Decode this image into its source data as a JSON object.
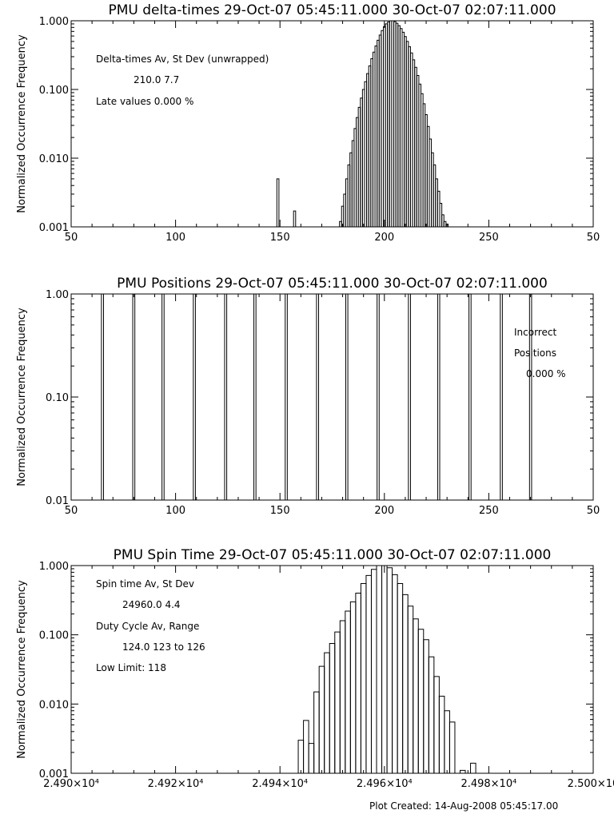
{
  "chart_data": [
    {
      "type": "histogram",
      "title": "PMU delta-times 29-Oct-07 05:45:11.000 30-Oct-07 02:07:11.000",
      "ylabel": "Normalized Occurrence Frequency",
      "xlabel": "",
      "xlim": [
        50,
        300
      ],
      "ylim": [
        0.001,
        1.0
      ],
      "yscale": "log",
      "x_tick_labels": [
        "50",
        "100",
        "150",
        "200",
        "250",
        "50"
      ],
      "y_tick_values": [
        0.001,
        0.01,
        0.1,
        1.0
      ],
      "y_tick_labels": [
        "0.001",
        "0.010",
        "0.100",
        "1.000"
      ],
      "bin_width": 1,
      "bins_x": [
        149,
        157,
        179,
        180,
        181,
        182,
        183,
        184,
        185,
        186,
        187,
        188,
        189,
        190,
        191,
        192,
        193,
        194,
        195,
        196,
        197,
        198,
        199,
        200,
        201,
        202,
        203,
        204,
        205,
        206,
        207,
        208,
        209,
        210,
        211,
        212,
        213,
        214,
        215,
        216,
        217,
        218,
        219,
        220,
        221,
        222,
        223,
        224,
        225,
        226,
        227,
        228,
        229,
        230,
        231,
        232,
        233
      ],
      "bins_y": [
        0.005,
        0.0017,
        0.0012,
        0.002,
        0.003,
        0.005,
        0.008,
        0.012,
        0.018,
        0.027,
        0.039,
        0.055,
        0.075,
        0.1,
        0.13,
        0.17,
        0.22,
        0.28,
        0.35,
        0.43,
        0.52,
        0.62,
        0.72,
        0.82,
        0.9,
        0.96,
        1.0,
        1.0,
        0.97,
        0.92,
        0.85,
        0.77,
        0.68,
        0.59,
        0.5,
        0.42,
        0.34,
        0.27,
        0.21,
        0.16,
        0.12,
        0.087,
        0.062,
        0.043,
        0.029,
        0.019,
        0.012,
        0.008,
        0.005,
        0.0033,
        0.0022,
        0.0015,
        0.0012,
        0.0011,
        0.001,
        0.001,
        0.001
      ],
      "annotations": [
        "Delta-times Av, St Dev (unwrapped)",
        "210.0     7.7",
        "Late values   0.000 %"
      ]
    },
    {
      "type": "histogram",
      "title": "PMU Positions 29-Oct-07 05:45:11.000 30-Oct-07 02:07:11.000",
      "ylabel": "Normalized Occurrence Frequency",
      "xlabel": "",
      "xlim": [
        50,
        300
      ],
      "ylim": [
        0.01,
        1.0
      ],
      "yscale": "log",
      "x_tick_labels": [
        "50",
        "100",
        "150",
        "200",
        "250",
        "50"
      ],
      "y_tick_values": [
        0.01,
        0.1,
        1.0
      ],
      "y_tick_labels": [
        "0.01",
        "0.10",
        "1.00"
      ],
      "spike_positions": [
        65,
        80,
        94,
        109,
        124,
        138,
        153,
        168,
        182,
        197,
        212,
        226,
        241,
        256,
        270
      ],
      "spike_value": 1.0,
      "annotations": [
        "Incorrect",
        "Positions",
        "0.000 %"
      ]
    },
    {
      "type": "histogram",
      "title": "PMU Spin Time 29-Oct-07 05:45:11.000 30-Oct-07 02:07:11.000",
      "ylabel": "Normalized Occurrence Frequency",
      "xlabel": "",
      "xlim": [
        24900,
        25000
      ],
      "ylim": [
        0.001,
        1.0
      ],
      "yscale": "log",
      "x_tick_labels": [
        "2.490×10⁴",
        "2.492×10⁴",
        "2.494×10⁴",
        "2.496×10⁴",
        "2.498×10⁴",
        "2.500×10"
      ],
      "y_tick_values": [
        0.001,
        0.01,
        0.1,
        1.0
      ],
      "y_tick_labels": [
        "0.001",
        "0.010",
        "0.100",
        "1.000"
      ],
      "bin_width": 1,
      "bins_x": [
        24944,
        24945,
        24946,
        24947,
        24948,
        24949,
        24950,
        24951,
        24952,
        24953,
        24954,
        24955,
        24956,
        24957,
        24958,
        24959,
        24960,
        24961,
        24962,
        24963,
        24964,
        24965,
        24966,
        24967,
        24968,
        24969,
        24970,
        24971,
        24972,
        24973,
        24975,
        24977
      ],
      "bins_y": [
        0.003,
        0.0058,
        0.0027,
        0.015,
        0.035,
        0.055,
        0.075,
        0.11,
        0.16,
        0.22,
        0.3,
        0.4,
        0.55,
        0.72,
        0.88,
        1.0,
        1.0,
        0.93,
        0.74,
        0.55,
        0.38,
        0.26,
        0.17,
        0.12,
        0.085,
        0.048,
        0.025,
        0.013,
        0.008,
        0.0055,
        0.0011,
        0.0014
      ],
      "annotations": [
        "Spin time Av, St Dev",
        "24960.0        4.4",
        "Duty Cycle Av, Range",
        "124.0 123 to 126",
        "Low Limit: 118"
      ]
    }
  ],
  "footer": "Plot Created: 14-Aug-2008 05:45:17.00"
}
